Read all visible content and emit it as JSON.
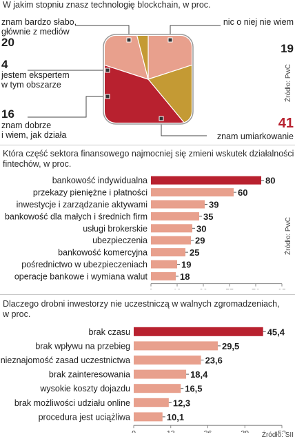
{
  "colors": {
    "dark_red": "#b8212f",
    "salmon": "#e8a08d",
    "olive": "#c49a34",
    "leader": "#444444"
  },
  "chart_data": [
    {
      "type": "pie",
      "title": "W jakim stopniu znasz technologię blockchain, w proc.",
      "source": "Źródło: PwC",
      "slices": [
        {
          "label": "znam bardzo słabo, głównie z mediów",
          "label_lines": [
            "znam bardzo słabo,",
            "głównie z mediów"
          ],
          "value": 20,
          "color": "#e8a08d"
        },
        {
          "label": "nic o niej nie wiem",
          "label_lines": [
            "nic o niej nie wiem"
          ],
          "value": 19,
          "color": "#c49a34"
        },
        {
          "label": "znam umiarkowanie",
          "label_lines": [
            "znam umiarkowanie"
          ],
          "value": 41,
          "color": "#b8212f"
        },
        {
          "label": "znam dobrze i wiem, jak działa",
          "label_lines": [
            "znam dobrze",
            "i wiem, jak działa"
          ],
          "value": 16,
          "color": "#e8a08d"
        },
        {
          "label": "jestem ekspertem w tym obszarze",
          "label_lines": [
            "jestem ekspertem",
            "w tym obszarze"
          ],
          "value": 4,
          "color": "#c49a34"
        }
      ]
    },
    {
      "type": "bar",
      "orientation": "horizontal",
      "title": "Która część sektora finansowego najmocniej się zmieni wskutek działalności fintechów, w proc.",
      "title_lines": [
        "Która część sektora finansowego najmocniej się zmieni wskutek działalności",
        "fintechów, w proc."
      ],
      "source": "Źródło: PwC",
      "categories": [
        "bankowość indywidualna",
        "przekazy pieniężne i płatności",
        "inwestycje i zarządzanie aktywami",
        "bankowość dla małych i średnich firm",
        "usługi brokerskie",
        "ubezpieczenia",
        "bankowość komercyjna",
        "pośrednictwo w ubezpieczeniach",
        "operacje bankowe i wymiana walut"
      ],
      "values": [
        80,
        60,
        39,
        35,
        30,
        29,
        25,
        19,
        18
      ],
      "value_labels": [
        "80",
        "60",
        "39",
        "35",
        "30",
        "29",
        "25",
        "19",
        "18"
      ],
      "xlim": [
        0,
        95
      ],
      "xticks": [
        0,
        19,
        38,
        57,
        76,
        95
      ],
      "xtick_labels": [
        "0",
        "19",
        "38",
        "57",
        "76",
        "95"
      ]
    },
    {
      "type": "bar",
      "orientation": "horizontal",
      "title": "Dlaczego drobni inwestorzy nie uczestniczą w walnych zgromadzeniach, w proc.",
      "title_lines": [
        "Dlaczego drobni inwestorzy nie uczestniczą w walnych zgromadzeniach,",
        "w proc."
      ],
      "source": "Źródło: SII",
      "categories": [
        "brak czasu",
        "brak wpływu na przebieg",
        "nieznajomość zasad uczestnictwa",
        "brak zainteresowania",
        "wysokie koszty dojazdu",
        "brak możliwości udziału online",
        "procedura jest uciążliwa"
      ],
      "values": [
        45.4,
        29.5,
        23.6,
        18.4,
        16.5,
        12.3,
        10.1
      ],
      "value_labels": [
        "45,4",
        "29,5",
        "23,6",
        "18,4",
        "16,5",
        "12,3",
        "10,1"
      ],
      "xlim": [
        0,
        52
      ],
      "xticks": [
        0,
        13,
        26,
        39,
        52
      ],
      "xtick_labels": [
        "0",
        "13",
        "26",
        "39",
        "52"
      ]
    }
  ]
}
